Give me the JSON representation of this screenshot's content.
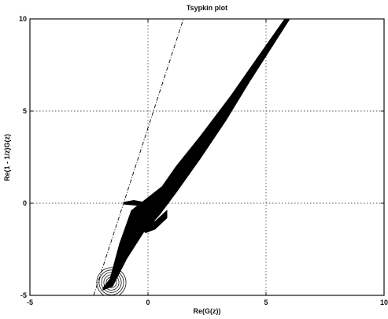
{
  "chart_data": {
    "type": "line",
    "title": "Tsypkin plot",
    "xlabel": "Re(G(z))",
    "ylabel": "Re(1 - 1/z)G(z)",
    "xlim": [
      -5,
      10
    ],
    "ylim": [
      -5,
      10
    ],
    "xticks": [
      -5,
      0,
      5,
      10
    ],
    "yticks": [
      -5,
      0,
      5,
      10
    ],
    "grid": true,
    "series": [
      {
        "style": "filled-band",
        "color": "#000000",
        "upper": [
          [
            -1.9,
            -4.6
          ],
          [
            -1.6,
            -4.1
          ],
          [
            -1.2,
            -2.2
          ],
          [
            -0.7,
            -0.4
          ],
          [
            0.0,
            0.3
          ],
          [
            0.6,
            0.9
          ],
          [
            1.2,
            2.0
          ],
          [
            2.2,
            3.6
          ],
          [
            3.5,
            5.8
          ],
          [
            4.7,
            8.0
          ],
          [
            5.8,
            10.0
          ]
        ],
        "lower": [
          [
            -1.9,
            -4.7
          ],
          [
            -1.5,
            -4.5
          ],
          [
            -0.9,
            -3.0
          ],
          [
            -0.2,
            -1.6
          ],
          [
            0.5,
            -0.6
          ],
          [
            1.2,
            0.6
          ],
          [
            2.2,
            2.4
          ],
          [
            3.3,
            4.5
          ],
          [
            4.3,
            6.6
          ],
          [
            5.3,
            8.6
          ],
          [
            6.0,
            10.0
          ]
        ]
      },
      {
        "style": "filled-band",
        "color": "#000000",
        "upper": [
          [
            -1.0,
            0.05
          ],
          [
            -0.6,
            0.15
          ],
          [
            -0.2,
            0.05
          ],
          [
            0.1,
            0.1
          ]
        ],
        "lower": [
          [
            -1.0,
            -0.05
          ],
          [
            -0.6,
            -0.1
          ],
          [
            -0.2,
            -0.15
          ],
          [
            0.1,
            -0.05
          ]
        ]
      },
      {
        "style": "filled-band",
        "color": "#000000",
        "upper": [
          [
            -0.5,
            -0.3
          ],
          [
            -0.1,
            -0.8
          ],
          [
            0.3,
            -1.0
          ],
          [
            0.8,
            -0.4
          ]
        ],
        "lower": [
          [
            -0.5,
            -1.0
          ],
          [
            -0.1,
            -1.6
          ],
          [
            0.3,
            -1.4
          ],
          [
            0.8,
            -0.8
          ]
        ]
      },
      {
        "style": "dashed",
        "color": "#000000",
        "points": [
          [
            -2.3,
            -5.0
          ],
          [
            1.5,
            10.0
          ]
        ]
      }
    ],
    "contours": {
      "center": [
        -1.55,
        -4.3
      ],
      "radii": [
        0.12,
        0.22,
        0.32,
        0.42,
        0.52,
        0.62
      ]
    }
  }
}
